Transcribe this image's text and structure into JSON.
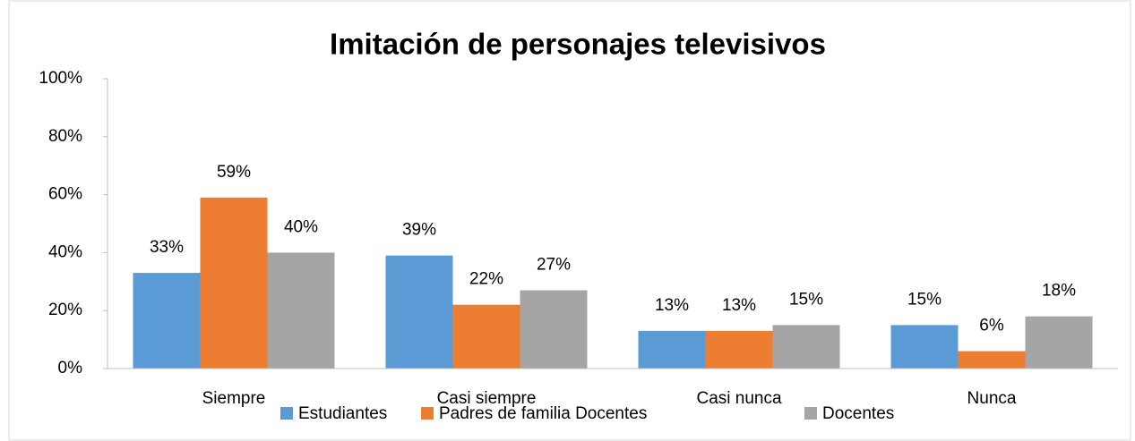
{
  "chart_data": {
    "type": "bar",
    "title": "Imitación de personajes televisivos",
    "categories": [
      "Siempre",
      "Casi siempre",
      "Casi nunca",
      "Nunca"
    ],
    "series": [
      {
        "name": "Estudiantes",
        "color": "#5b9bd5",
        "values": [
          33,
          39,
          13,
          15
        ],
        "value_labels": [
          "33%",
          "39%",
          "13%",
          "15%"
        ]
      },
      {
        "name": "Padres de familia Docentes",
        "color": "#ed7d31",
        "values": [
          59,
          22,
          13,
          6
        ],
        "value_labels": [
          "59%",
          "22%",
          "13%",
          "6%"
        ]
      },
      {
        "name": "Docentes",
        "color": "#a5a5a5",
        "values": [
          40,
          27,
          15,
          18
        ],
        "value_labels": [
          "40%",
          "27%",
          "15%",
          "18%"
        ]
      }
    ],
    "ylim": [
      0,
      100
    ],
    "yticks": [
      {
        "value": 0,
        "label": "0%"
      },
      {
        "value": 20,
        "label": "20%"
      },
      {
        "value": 40,
        "label": "40%"
      },
      {
        "value": 60,
        "label": "60%"
      },
      {
        "value": 80,
        "label": "80%"
      },
      {
        "value": 100,
        "label": "100%"
      }
    ],
    "grid": false,
    "legend": "bottom"
  }
}
